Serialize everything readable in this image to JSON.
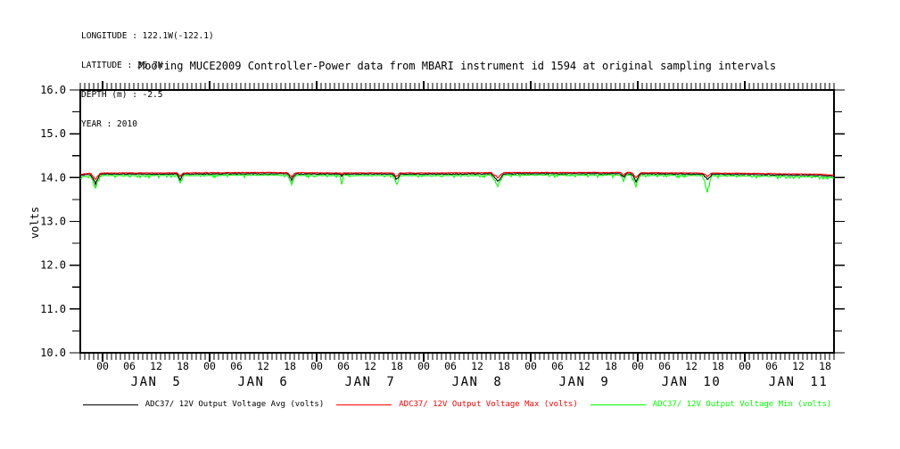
{
  "header": {
    "lines": [
      "LONGITUDE : 122.1W(-122.1)",
      "LATITUDE : 36.7N",
      "DEPTH (m) : -2.5",
      "YEAR : 2010"
    ]
  },
  "legend": {
    "items": [
      {
        "label": "ADC37/ 12V Output Voltage Avg (volts)",
        "color": "#000000"
      },
      {
        "label": "ADC37/ 12V Output Voltage Max (volts)",
        "color": "#ff0000"
      },
      {
        "label": "ADC37/ 12V Output Voltage Min (volts)",
        "color": "#00ff00"
      }
    ]
  },
  "chart_data": {
    "type": "line",
    "title": "Mooring MUCE2009 Controller-Power data from MBARI instrument id 1594 at original sampling intervals",
    "ylabel": "volts",
    "ylim": [
      10.0,
      16.0
    ],
    "y_major_tick_labels": [
      "10.0",
      "11.0",
      "12.0",
      "13.0",
      "14.0",
      "15.0",
      "16.0"
    ],
    "y_minor_step": 0.5,
    "background": "#ffffff",
    "axis_color": "#000000",
    "grid": false,
    "legend_position": "bottom",
    "x_axis": {
      "unit": "hours along axis (t=0 at left edge = Jan 4 19:00, 2010)",
      "range_hours": 169,
      "first_midnight_hour": 5,
      "minor_tick_every_hours": 1,
      "labeled_tick_every_hours": 6,
      "hour_label_cycle": [
        "00",
        "06",
        "12",
        "18"
      ],
      "day_labels": [
        "JAN 5",
        "JAN 6",
        "JAN 7",
        "JAN 8",
        "JAN 9",
        "JAN 10",
        "JAN 11"
      ]
    },
    "series": [
      {
        "role": "avg",
        "name": "ADC37/ 12V Output Voltage Avg (volts)",
        "color": "#000000",
        "offset": 0.0,
        "dip_factor": 1.0,
        "noise": 0.018,
        "spike": 0.0,
        "seed": 7
      },
      {
        "role": "max",
        "name": "ADC37/ 12V Output Voltage Max (volts)",
        "color": "#ff0000",
        "offset": 0.027,
        "dip_factor": 0.65,
        "noise": 0.014,
        "spike": 0.0,
        "seed": 11
      },
      {
        "role": "min",
        "name": "ADC37/ 12V Output Voltage Min (volts)",
        "color": "#00ff00",
        "offset": -0.033,
        "dip_factor": 1.15,
        "noise": 0.022,
        "spike": 0.05,
        "seed": 23
      }
    ],
    "baseline_points_volts": [
      [
        0,
        14.05
      ],
      [
        2,
        14.07
      ],
      [
        5,
        14.08
      ],
      [
        20,
        14.08
      ],
      [
        40,
        14.09
      ],
      [
        60,
        14.08
      ],
      [
        80,
        14.08
      ],
      [
        100,
        14.09
      ],
      [
        120,
        14.09
      ],
      [
        135,
        14.08
      ],
      [
        150,
        14.07
      ],
      [
        158,
        14.06
      ],
      [
        165,
        14.05
      ],
      [
        169,
        14.03
      ]
    ],
    "dips": [
      {
        "t": 3.4,
        "w": 1.2,
        "d": 0.22,
        "m": 0.02
      },
      {
        "t": 22.4,
        "w": 0.8,
        "d": 0.12,
        "m": 0.05
      },
      {
        "t": 47.4,
        "w": 1.0,
        "d": 0.15,
        "m": 0.04
      },
      {
        "t": 58.6,
        "w": 0.4,
        "d": 0.04,
        "m": 0.18
      },
      {
        "t": 70.9,
        "w": 0.9,
        "d": 0.13,
        "m": 0.05
      },
      {
        "t": 93.6,
        "w": 1.5,
        "d": 0.18,
        "m": 0.05
      },
      {
        "t": 121.8,
        "w": 0.7,
        "d": 0.09,
        "m": 0.06
      },
      {
        "t": 124.6,
        "w": 1.2,
        "d": 0.17,
        "m": 0.05
      },
      {
        "t": 140.6,
        "w": 1.1,
        "d": 0.13,
        "m": 0.22
      }
    ]
  }
}
